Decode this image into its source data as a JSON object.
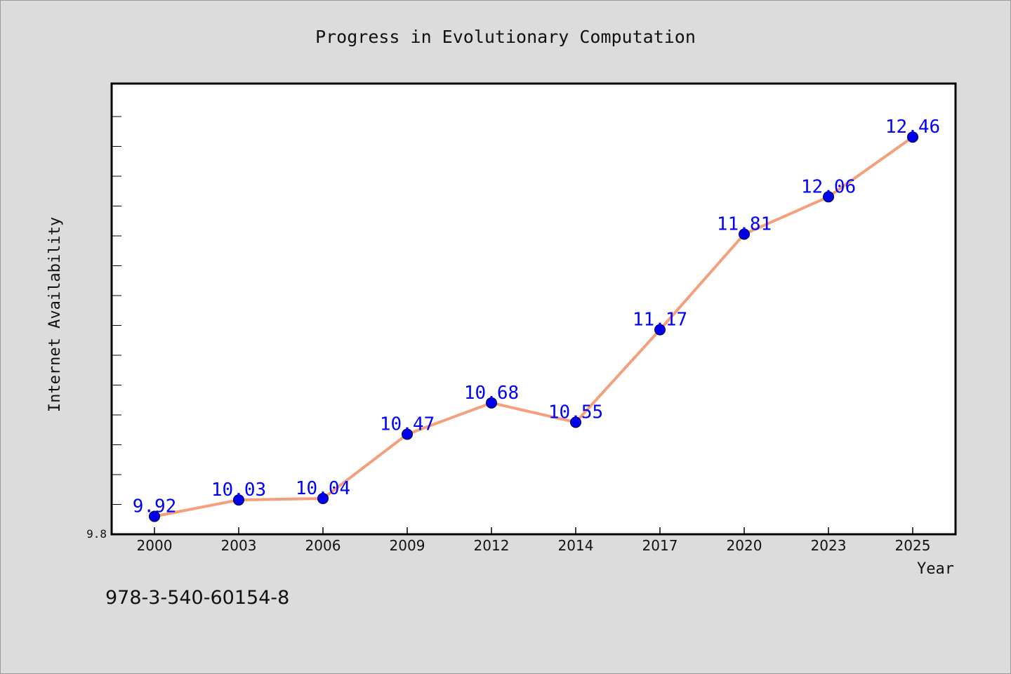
{
  "chart_data": {
    "type": "line",
    "title": "Progress in Evolutionary Computation",
    "xlabel": "Year",
    "ylabel": "Internet Availability",
    "categories": [
      "2000",
      "2003",
      "2006",
      "2009",
      "2012",
      "2014",
      "2017",
      "2020",
      "2023",
      "2025"
    ],
    "series": [
      {
        "values": [
          9.92,
          10.03,
          10.04,
          10.47,
          10.68,
          10.55,
          11.17,
          11.81,
          12.06,
          12.46
        ],
        "data_labels": [
          "9.92",
          "10.03",
          "10.04",
          "10.47",
          "10.68",
          "10.55",
          "11.17",
          "11.81",
          "12.06",
          "12.46"
        ]
      }
    ],
    "y_tick_labels": [
      "9.8"
    ],
    "ylim": [
      9.8,
      12.8
    ],
    "grid": false,
    "legend": "none",
    "colors": {
      "line": "#f4a07c",
      "marker": "#0000ee",
      "data_label": "#0000ff",
      "plot_background": "#ffffff",
      "page_background": "#dcdcdc"
    }
  },
  "footer": {
    "isbn": "978-3-540-60154-8"
  }
}
